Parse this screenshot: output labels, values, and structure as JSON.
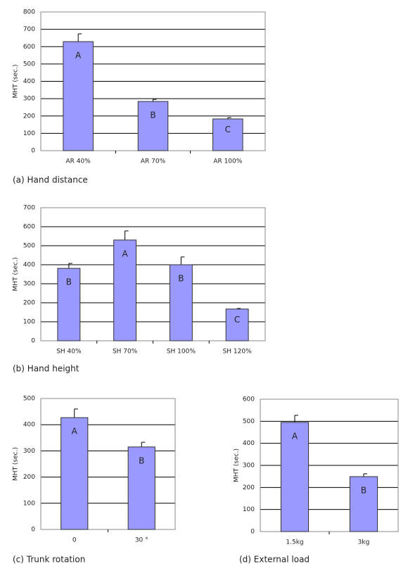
{
  "chart_data": [
    {
      "type": "bar",
      "caption": "(a) Hand distance",
      "ylabel": "MHT (sec.)",
      "categories": [
        "AR 40%",
        "AR 70%",
        "AR 100%"
      ],
      "values": [
        629,
        284,
        183
      ],
      "errors": [
        45,
        12,
        8
      ],
      "letters": [
        "A",
        "B",
        "C"
      ],
      "color": "#9999ff",
      "ylim": [
        0,
        800
      ],
      "yticks": [
        0,
        100,
        200,
        300,
        400,
        500,
        600,
        700,
        800
      ],
      "grid": true
    },
    {
      "type": "bar",
      "caption": "(b) Hand height",
      "ylabel": "MHT (sec.)",
      "categories": [
        "SH 40%",
        "SH 70%",
        "SH 100%",
        "SH 120%"
      ],
      "values": [
        381,
        530,
        400,
        167
      ],
      "errors": [
        26,
        48,
        41,
        3
      ],
      "letters": [
        "B",
        "A",
        "B",
        "C"
      ],
      "color": "#9999ff",
      "ylim": [
        0,
        700
      ],
      "yticks": [
        0,
        100,
        200,
        300,
        400,
        500,
        600,
        700
      ],
      "grid": true
    },
    {
      "type": "bar",
      "caption": "(c) Trunk rotation",
      "ylabel": "MHT (sec.)",
      "categories": [
        "0",
        "30 °"
      ],
      "values": [
        427,
        315
      ],
      "errors": [
        33,
        18
      ],
      "letters": [
        "A",
        "B"
      ],
      "color": "#9999ff",
      "ylim": [
        0,
        500
      ],
      "yticks": [
        0,
        100,
        200,
        300,
        400,
        500
      ],
      "grid": true
    },
    {
      "type": "bar",
      "caption": "(d) External load",
      "ylabel": "MHT (sec.)",
      "categories": [
        "1.5kg",
        "3kg"
      ],
      "values": [
        495,
        249
      ],
      "errors": [
        32,
        13
      ],
      "letters": [
        "A",
        "B"
      ],
      "color": "#9999ff",
      "ylim": [
        0,
        600
      ],
      "yticks": [
        0,
        100,
        200,
        300,
        400,
        500,
        600
      ],
      "grid": true
    }
  ]
}
